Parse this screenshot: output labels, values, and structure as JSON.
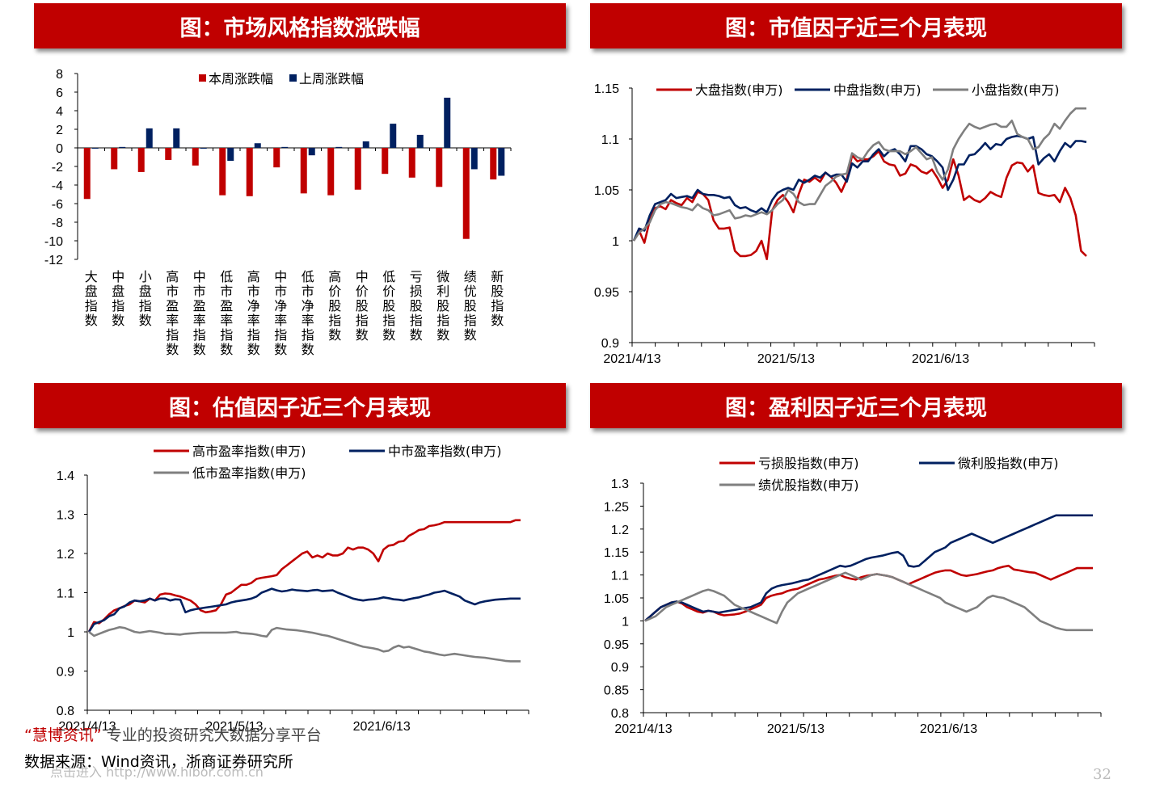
{
  "panels": [
    {
      "title": "图：市场风格指数涨跌幅"
    },
    {
      "title": "图：市值因子近三个月表现"
    },
    {
      "title": "图：估值因子近三个月表现"
    },
    {
      "title": "图：盈利因子近三个月表现"
    }
  ],
  "footer": {
    "watermark_brand": "慧博资讯",
    "watermark_tagline": "专业的投资研究大数据分享平台",
    "source": "数据来源：Wind资讯，浙商证券研究所",
    "watermark_url": "点击进入 http://www.hibor.com.cn",
    "page_number": "32"
  },
  "chart_data": [
    {
      "type": "bar",
      "categories": [
        "大盘指数",
        "中盘指数",
        "小盘指数",
        "高市盈率指数",
        "中市盈率指数",
        "低市盈率指数",
        "高市净率指数",
        "中市净率指数",
        "低市净率指数",
        "高价股指数",
        "中价股指数",
        "低价股指数",
        "亏损股指数",
        "微利股指数",
        "绩优股指数",
        "新股指数"
      ],
      "series": [
        {
          "name": "本周涨跌幅",
          "color": "#c00000",
          "values": [
            -5.5,
            -2.3,
            -2.6,
            -1.3,
            -1.9,
            -5.1,
            -5.2,
            -2.1,
            -4.9,
            -5.1,
            -4.5,
            -2.8,
            -3.2,
            -4.2,
            -9.8,
            -3.4
          ]
        },
        {
          "name": "上周涨跌幅",
          "color": "#002060",
          "values": [
            0.0,
            0.1,
            2.1,
            2.1,
            0.0,
            -1.4,
            0.5,
            0.1,
            -0.8,
            0.1,
            0.7,
            2.6,
            1.4,
            5.4,
            -2.3,
            -3.0
          ]
        }
      ],
      "yticks": [
        8,
        6,
        4,
        2,
        0,
        -2,
        -4,
        -6,
        -8,
        -10,
        -12
      ],
      "ylim": [
        -12,
        8
      ],
      "legend": "top"
    },
    {
      "type": "line",
      "xticks": [
        "2021/4/13",
        "2021/5/13",
        "2021/6/13"
      ],
      "yticks": [
        "1.15",
        "1.1",
        "1.05",
        "1",
        "0.95",
        "0.9"
      ],
      "ylim": [
        0.9,
        1.15
      ],
      "legend": "top",
      "series": [
        {
          "name": "大盘指数(申万)",
          "color": "#c00000",
          "values": [
            1.0,
            1.01,
            0.998,
            1.02,
            1.032,
            1.034,
            1.031,
            1.04,
            1.037,
            1.035,
            1.042,
            1.038,
            1.048,
            1.046,
            1.04,
            1.02,
            1.012,
            1.012,
            1.013,
            0.99,
            0.985,
            0.985,
            0.986,
            0.99,
            1.0,
            0.982,
            1.03,
            1.04,
            1.045,
            1.038,
            1.028,
            1.046,
            1.06,
            1.058,
            1.062,
            1.058,
            1.067,
            1.063,
            1.057,
            1.048,
            1.06,
            1.084,
            1.078,
            1.08,
            1.08,
            1.083,
            1.088,
            1.078,
            1.075,
            1.074,
            1.064,
            1.066,
            1.075,
            1.073,
            1.068,
            1.066,
            1.07,
            1.062,
            1.052,
            1.06,
            1.08,
            1.064,
            1.04,
            1.044,
            1.04,
            1.038,
            1.042,
            1.048,
            1.045,
            1.043,
            1.062,
            1.074,
            1.077,
            1.076,
            1.068,
            1.074,
            1.047,
            1.045,
            1.044,
            1.045,
            1.038,
            1.052,
            1.042,
            1.025,
            0.99,
            0.985
          ]
        },
        {
          "name": "中盘指数(申万)",
          "color": "#002060",
          "values": [
            1.0,
            1.012,
            1.01,
            1.025,
            1.036,
            1.038,
            1.04,
            1.046,
            1.042,
            1.043,
            1.044,
            1.042,
            1.05,
            1.046,
            1.045,
            1.045,
            1.044,
            1.042,
            1.043,
            1.035,
            1.032,
            1.033,
            1.03,
            1.028,
            1.032,
            1.028,
            1.04,
            1.047,
            1.05,
            1.052,
            1.05,
            1.06,
            1.057,
            1.06,
            1.064,
            1.062,
            1.067,
            1.063,
            1.065,
            1.065,
            1.058,
            1.076,
            1.072,
            1.078,
            1.078,
            1.085,
            1.09,
            1.083,
            1.088,
            1.09,
            1.085,
            1.078,
            1.093,
            1.093,
            1.09,
            1.085,
            1.083,
            1.078,
            1.072,
            1.05,
            1.06,
            1.075,
            1.075,
            1.084,
            1.085,
            1.09,
            1.096,
            1.09,
            1.095,
            1.094,
            1.1,
            1.102,
            1.103,
            1.102,
            1.1,
            1.102,
            1.075,
            1.081,
            1.085,
            1.078,
            1.088,
            1.096,
            1.092,
            1.098,
            1.098,
            1.097
          ]
        },
        {
          "name": "小盘指数(申万)",
          "color": "#7f7f7f",
          "values": [
            1.0,
            1.008,
            1.012,
            1.018,
            1.03,
            1.036,
            1.038,
            1.037,
            1.035,
            1.033,
            1.032,
            1.03,
            1.036,
            1.032,
            1.03,
            1.025,
            1.026,
            1.028,
            1.03,
            1.022,
            1.023,
            1.025,
            1.024,
            1.026,
            1.028,
            1.026,
            1.03,
            1.036,
            1.04,
            1.05,
            1.046,
            1.038,
            1.035,
            1.036,
            1.036,
            1.045,
            1.054,
            1.058,
            1.063,
            1.065,
            1.066,
            1.086,
            1.082,
            1.08,
            1.088,
            1.094,
            1.097,
            1.09,
            1.088,
            1.088,
            1.088,
            1.085,
            1.088,
            1.092,
            1.086,
            1.08,
            1.082,
            1.068,
            1.06,
            1.07,
            1.09,
            1.1,
            1.108,
            1.115,
            1.112,
            1.11,
            1.112,
            1.114,
            1.115,
            1.112,
            1.112,
            1.118,
            1.105,
            1.102,
            1.1,
            1.09,
            1.092,
            1.1,
            1.105,
            1.115,
            1.11,
            1.118,
            1.125,
            1.13,
            1.13,
            1.13
          ]
        }
      ]
    },
    {
      "type": "line",
      "xticks": [
        "2021/4/13",
        "2021/5/13",
        "2021/6/13"
      ],
      "yticks": [
        "1.4",
        "1.3",
        "1.2",
        "1.1",
        "1",
        "0.9",
        "0.8"
      ],
      "ylim": [
        0.8,
        1.4
      ],
      "legend": "top",
      "series": [
        {
          "name": "高市盈率指数(申万)",
          "color": "#c00000",
          "values": [
            1.0,
            1.025,
            1.022,
            1.032,
            1.045,
            1.055,
            1.06,
            1.066,
            1.07,
            1.08,
            1.078,
            1.075,
            1.085,
            1.08,
            1.095,
            1.098,
            1.097,
            1.093,
            1.09,
            1.085,
            1.08,
            1.07,
            1.055,
            1.05,
            1.052,
            1.055,
            1.07,
            1.095,
            1.1,
            1.11,
            1.12,
            1.12,
            1.125,
            1.135,
            1.138,
            1.14,
            1.142,
            1.145,
            1.16,
            1.17,
            1.18,
            1.19,
            1.2,
            1.205,
            1.19,
            1.195,
            1.19,
            1.2,
            1.195,
            1.195,
            1.2,
            1.215,
            1.21,
            1.215,
            1.215,
            1.21,
            1.2,
            1.18,
            1.21,
            1.22,
            1.222,
            1.23,
            1.232,
            1.245,
            1.252,
            1.26,
            1.262,
            1.27,
            1.272,
            1.275,
            1.28,
            1.28,
            1.28,
            1.28,
            1.28,
            1.28,
            1.28,
            1.28,
            1.28,
            1.28,
            1.28,
            1.28,
            1.28,
            1.28,
            1.285,
            1.285
          ]
        },
        {
          "name": "中市盈率指数(申万)",
          "color": "#002060",
          "values": [
            1.0,
            1.02,
            1.025,
            1.03,
            1.04,
            1.045,
            1.06,
            1.065,
            1.075,
            1.08,
            1.078,
            1.08,
            1.085,
            1.08,
            1.085,
            1.085,
            1.08,
            1.083,
            1.082,
            1.05,
            1.055,
            1.058,
            1.06,
            1.062,
            1.064,
            1.066,
            1.068,
            1.07,
            1.075,
            1.078,
            1.08,
            1.082,
            1.085,
            1.09,
            1.1,
            1.105,
            1.11,
            1.106,
            1.103,
            1.105,
            1.108,
            1.106,
            1.105,
            1.104,
            1.106,
            1.107,
            1.104,
            1.105,
            1.106,
            1.1,
            1.095,
            1.09,
            1.085,
            1.082,
            1.08,
            1.082,
            1.083,
            1.085,
            1.088,
            1.086,
            1.083,
            1.082,
            1.08,
            1.083,
            1.086,
            1.088,
            1.092,
            1.095,
            1.1,
            1.102,
            1.105,
            1.1,
            1.095,
            1.09,
            1.08,
            1.075,
            1.07,
            1.075,
            1.078,
            1.08,
            1.082,
            1.083,
            1.084,
            1.085,
            1.085,
            1.085
          ]
        },
        {
          "name": "低市盈率指数(申万)",
          "color": "#7f7f7f",
          "values": [
            1.0,
            0.99,
            0.995,
            1.0,
            1.005,
            1.008,
            1.012,
            1.01,
            1.005,
            1.0,
            0.998,
            1.0,
            1.002,
            1.0,
            0.998,
            0.995,
            0.995,
            0.994,
            0.993,
            0.995,
            0.996,
            0.997,
            0.998,
            0.998,
            0.998,
            0.998,
            0.998,
            0.998,
            0.999,
            1.0,
            0.997,
            0.996,
            0.995,
            0.993,
            0.99,
            0.988,
            1.005,
            1.01,
            1.008,
            1.006,
            1.005,
            1.004,
            1.002,
            1.0,
            0.998,
            0.995,
            0.992,
            0.99,
            0.986,
            0.982,
            0.978,
            0.974,
            0.97,
            0.966,
            0.962,
            0.96,
            0.958,
            0.955,
            0.95,
            0.952,
            0.96,
            0.965,
            0.96,
            0.962,
            0.958,
            0.954,
            0.95,
            0.948,
            0.945,
            0.942,
            0.94,
            0.942,
            0.944,
            0.942,
            0.94,
            0.938,
            0.936,
            0.935,
            0.934,
            0.932,
            0.93,
            0.928,
            0.926,
            0.925,
            0.925,
            0.925
          ]
        }
      ]
    },
    {
      "type": "line",
      "xticks": [
        "2021/4/13",
        "2021/5/13",
        "2021/6/13"
      ],
      "yticks": [
        "1.3",
        "1.25",
        "1.2",
        "1.15",
        "1.1",
        "1.05",
        "1",
        "0.95",
        "0.9",
        "0.85",
        "0.8"
      ],
      "ylim": [
        0.8,
        1.3
      ],
      "legend": "top",
      "series": [
        {
          "name": "亏损股指数(申万)",
          "color": "#c00000",
          "values": [
            1.0,
            1.01,
            1.02,
            1.03,
            1.035,
            1.04,
            1.042,
            1.038,
            1.03,
            1.025,
            1.02,
            1.018,
            1.022,
            1.02,
            1.015,
            1.012,
            1.013,
            1.014,
            1.016,
            1.02,
            1.025,
            1.03,
            1.035,
            1.05,
            1.055,
            1.058,
            1.06,
            1.065,
            1.068,
            1.07,
            1.075,
            1.08,
            1.085,
            1.09,
            1.092,
            1.095,
            1.098,
            1.1,
            1.095,
            1.092,
            1.09,
            1.095,
            1.098,
            1.1,
            1.102,
            1.1,
            1.098,
            1.095,
            1.09,
            1.085,
            1.08,
            1.085,
            1.09,
            1.095,
            1.1,
            1.105,
            1.108,
            1.11,
            1.11,
            1.105,
            1.1,
            1.098,
            1.1,
            1.102,
            1.105,
            1.108,
            1.11,
            1.115,
            1.118,
            1.12,
            1.112,
            1.11,
            1.108,
            1.106,
            1.105,
            1.1,
            1.095,
            1.09,
            1.095,
            1.1,
            1.105,
            1.11,
            1.115,
            1.115,
            1.115,
            1.115
          ]
        },
        {
          "name": "微利股指数(申万)",
          "color": "#002060",
          "values": [
            1.0,
            1.01,
            1.02,
            1.03,
            1.035,
            1.04,
            1.042,
            1.04,
            1.035,
            1.03,
            1.025,
            1.02,
            1.022,
            1.02,
            1.018,
            1.02,
            1.022,
            1.024,
            1.026,
            1.028,
            1.03,
            1.035,
            1.04,
            1.06,
            1.07,
            1.075,
            1.078,
            1.08,
            1.082,
            1.085,
            1.088,
            1.09,
            1.095,
            1.1,
            1.105,
            1.11,
            1.115,
            1.12,
            1.118,
            1.12,
            1.125,
            1.13,
            1.135,
            1.138,
            1.14,
            1.142,
            1.145,
            1.148,
            1.15,
            1.142,
            1.12,
            1.118,
            1.12,
            1.13,
            1.14,
            1.15,
            1.155,
            1.16,
            1.17,
            1.175,
            1.18,
            1.185,
            1.19,
            1.185,
            1.18,
            1.175,
            1.17,
            1.175,
            1.18,
            1.185,
            1.19,
            1.195,
            1.2,
            1.205,
            1.21,
            1.215,
            1.22,
            1.225,
            1.23,
            1.23,
            1.23,
            1.23,
            1.23,
            1.23,
            1.23,
            1.23
          ]
        },
        {
          "name": "绩优股指数(申万)",
          "color": "#7f7f7f",
          "values": [
            1.0,
            1.005,
            1.01,
            1.02,
            1.03,
            1.035,
            1.04,
            1.045,
            1.05,
            1.055,
            1.06,
            1.065,
            1.068,
            1.065,
            1.06,
            1.055,
            1.045,
            1.035,
            1.03,
            1.025,
            1.02,
            1.015,
            1.01,
            1.005,
            1.0,
            0.995,
            1.02,
            1.04,
            1.05,
            1.06,
            1.065,
            1.07,
            1.075,
            1.08,
            1.085,
            1.09,
            1.095,
            1.1,
            1.105,
            1.1,
            1.095,
            1.09,
            1.095,
            1.1,
            1.102,
            1.1,
            1.098,
            1.095,
            1.09,
            1.085,
            1.08,
            1.075,
            1.07,
            1.065,
            1.06,
            1.055,
            1.05,
            1.04,
            1.035,
            1.03,
            1.025,
            1.02,
            1.025,
            1.03,
            1.04,
            1.05,
            1.055,
            1.052,
            1.05,
            1.045,
            1.04,
            1.035,
            1.03,
            1.02,
            1.01,
            1.0,
            0.995,
            0.99,
            0.985,
            0.982,
            0.98,
            0.98,
            0.98,
            0.98,
            0.98,
            0.98
          ]
        }
      ]
    }
  ]
}
